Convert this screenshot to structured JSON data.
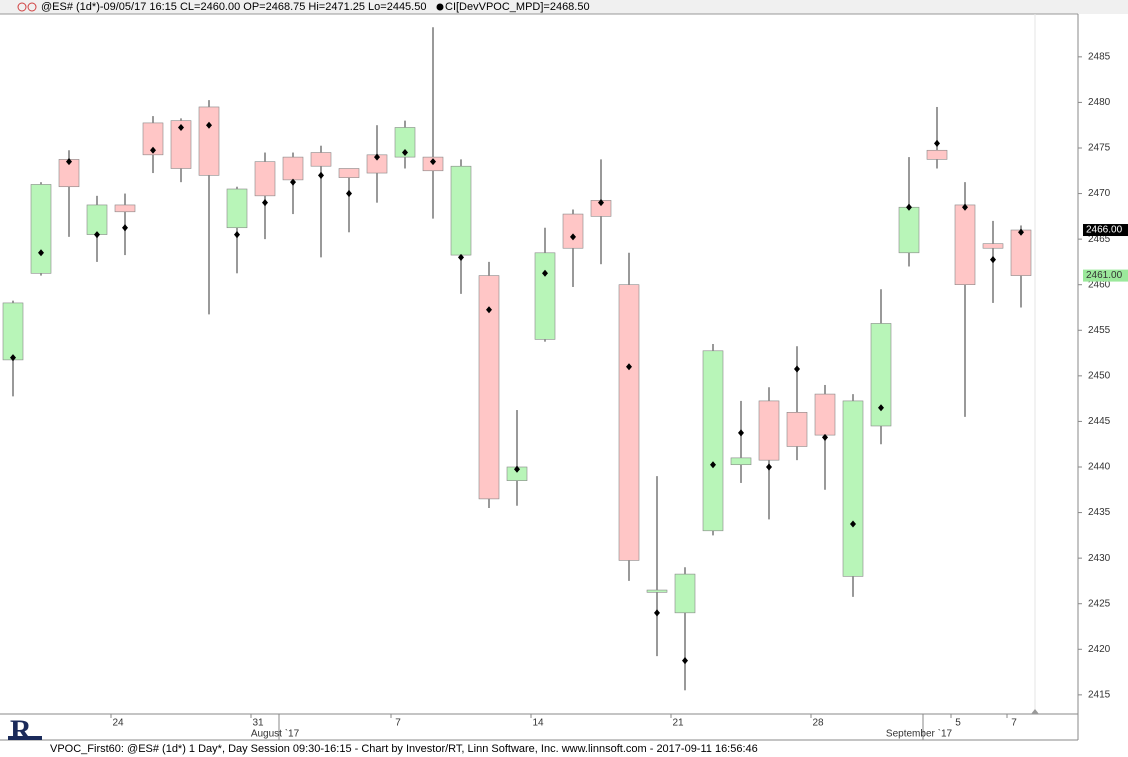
{
  "chart_data": {
    "type": "candlestick",
    "title": "@ES# (1d*)-09/05/17 16:15 CL=2460.00 OP=2468.75 Hi=2471.25 Lo=2445.50",
    "indicator": "CI[DevVPOC_MPD]=2468.50",
    "footer": "VPOC_First60: @ES# (1d*) 1 Day*, Day Session 09:30-16:15 - Chart by Investor/RT, Linn Software, Inc. www.linnsoft.com - 2017-09-11 16:56:46",
    "categories": [
      null,
      null,
      null,
      null,
      "24",
      null,
      null,
      null,
      null,
      "31",
      null,
      null,
      null,
      null,
      "7",
      null,
      null,
      null,
      null,
      "14",
      null,
      null,
      null,
      null,
      "21",
      null,
      null,
      null,
      null,
      "28",
      null,
      null,
      null,
      null,
      "5",
      null,
      "7"
    ],
    "month_labels": [
      "August `17",
      "September `17"
    ],
    "open": [
      2451.75,
      2461.25,
      2473.75,
      2465.5,
      2468.75,
      2477.75,
      2478,
      2479.5,
      2466.25,
      2473.5,
      2474,
      2474.5,
      2472.75,
      2474.25,
      2474,
      2474,
      2463.25,
      2461,
      2438.5,
      2454,
      2467.75,
      2469.25,
      2460,
      2426.25,
      2424,
      2433,
      2440.25,
      2447.25,
      2446,
      2448,
      2428,
      2444.5,
      2463.5,
      2474.75,
      2468.75,
      2464.5,
      2466
    ],
    "high": [
      2458.25,
      2471.25,
      2474.75,
      2469.75,
      2470,
      2478.5,
      2478.25,
      2480.25,
      2470.75,
      2474.5,
      2474.5,
      2475.25,
      2472.75,
      2477.5,
      2478,
      2488.25,
      2473.75,
      2462.5,
      2446.25,
      2466.25,
      2468.25,
      2473.75,
      2463.5,
      2439,
      2429,
      2453.5,
      2447.25,
      2448.75,
      2453.25,
      2449,
      2448,
      2459.5,
      2474,
      2479.5,
      2471.25,
      2467,
      2466.5
    ],
    "low": [
      2447.75,
      2461,
      2465.25,
      2462.5,
      2463.25,
      2472.25,
      2471.25,
      2456.75,
      2461.25,
      2465,
      2467.75,
      2463,
      2465.75,
      2469,
      2472.75,
      2467.25,
      2459,
      2435.5,
      2435.75,
      2453.75,
      2459.75,
      2462.25,
      2427.5,
      2419.25,
      2415.5,
      2432.5,
      2438.25,
      2434.25,
      2440.75,
      2437.5,
      2425.75,
      2442.5,
      2462,
      2472.75,
      2445.5,
      2458,
      2457.5
    ],
    "close": [
      2458,
      2471,
      2470.75,
      2468.75,
      2468,
      2474.25,
      2472.75,
      2472,
      2470.5,
      2469.75,
      2471.5,
      2473,
      2471.75,
      2472.25,
      2477.25,
      2472.5,
      2473,
      2436.5,
      2440,
      2463.5,
      2464,
      2467.5,
      2429.75,
      2426.5,
      2428.25,
      2452.75,
      2441,
      2440.75,
      2442.25,
      2443.5,
      2447.25,
      2455.75,
      2468.5,
      2473.75,
      2460,
      2464,
      2461
    ],
    "vpoc": [
      2452,
      2463.5,
      2473.5,
      2465.5,
      2466.25,
      2474.75,
      2477.25,
      2477.5,
      2465.5,
      2469,
      2471.25,
      2472,
      2470,
      2474,
      2474.5,
      2473.5,
      2463,
      2457.25,
      2439.75,
      2461.25,
      2465.25,
      2469,
      2451,
      2424,
      2418.75,
      2440.25,
      2443.75,
      2440,
      2450.75,
      2443.25,
      2433.75,
      2446.5,
      2468.5,
      2475.5,
      2468.5,
      2462.75,
      2465.75
    ],
    "up_color": "#b8f5b8",
    "down_color": "#ffc6c6",
    "ylim": [
      2412.9,
      2489.7
    ],
    "yticks": [
      2415,
      2420,
      2425,
      2430,
      2435,
      2440,
      2445,
      2450,
      2455,
      2460,
      2465,
      2470,
      2475,
      2480,
      2485
    ],
    "price_labels": [
      {
        "value": 2466,
        "label": "2466.00",
        "color": "#000000"
      },
      {
        "value": 2461,
        "label": "2461.00",
        "color": "#9be89b"
      }
    ]
  }
}
